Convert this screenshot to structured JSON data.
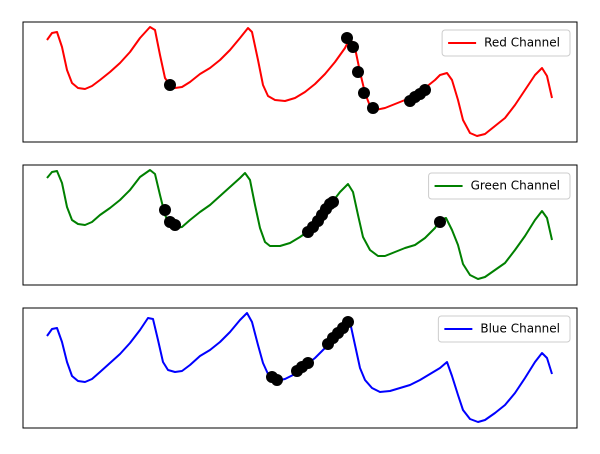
{
  "chart_data": [
    {
      "type": "line",
      "xlim": [
        -24,
        530
      ],
      "ylim": [
        0,
        120
      ],
      "legend": "upper right",
      "series": [
        {
          "name": "Red Channel",
          "color": "#ff0000",
          "x": [
            0,
            5,
            10,
            15,
            20,
            25,
            31,
            38,
            45,
            53,
            63,
            73,
            83,
            93,
            103,
            108,
            113,
            118,
            123,
            128,
            135,
            143,
            153,
            163,
            173,
            183,
            193,
            201,
            205,
            211,
            216,
            221,
            228,
            238,
            248,
            258,
            268,
            278,
            288,
            298,
            303,
            308,
            313,
            318,
            323,
            328,
            338,
            348,
            358,
            368,
            378,
            388,
            393,
            400,
            405,
            411,
            416,
            423,
            430,
            438,
            448,
            458,
            468,
            478,
            488,
            495,
            500,
            505
          ],
          "values": [
            102,
            109,
            110,
            95,
            72,
            59,
            54,
            53,
            56,
            62,
            70,
            79,
            90,
            104,
            115,
            112,
            87,
            64,
            57,
            54,
            55,
            60,
            68,
            74,
            82,
            92,
            104,
            114,
            110,
            82,
            57,
            46,
            42,
            41,
            44,
            50,
            58,
            68,
            80,
            94,
            104,
            94,
            70,
            49,
            36,
            32,
            34,
            38,
            42,
            47,
            54,
            62,
            67,
            69,
            62,
            42,
            22,
            9,
            6,
            8,
            16,
            24,
            37,
            52,
            67,
            74,
            66,
            44
          ]
        }
      ],
      "points": {
        "color": "#000000",
        "x": [
          123,
          300,
          306,
          311,
          317,
          326,
          363,
          368,
          373,
          378
        ],
        "values": [
          57,
          104,
          95,
          70,
          49,
          34,
          41,
          45,
          48,
          52
        ]
      }
    },
    {
      "type": "line",
      "xlim": [
        -24,
        530
      ],
      "ylim": [
        0,
        120
      ],
      "legend": "upper right",
      "series": [
        {
          "name": "Green Channel",
          "color": "#008000",
          "x": [
            0,
            5,
            10,
            15,
            20,
            25,
            31,
            38,
            45,
            53,
            63,
            73,
            83,
            93,
            103,
            108,
            113,
            118,
            123,
            128,
            135,
            143,
            153,
            163,
            173,
            183,
            193,
            198,
            203,
            208,
            213,
            218,
            223,
            233,
            243,
            253,
            263,
            273,
            283,
            293,
            301,
            306,
            311,
            316,
            323,
            331,
            338,
            348,
            358,
            368,
            378,
            388,
            393,
            399,
            405,
            411,
            416,
            423,
            431,
            438,
            448,
            458,
            468,
            478,
            488,
            495,
            500,
            505
          ],
          "values": [
            107,
            113,
            114,
            102,
            78,
            65,
            61,
            60,
            63,
            70,
            77,
            85,
            95,
            108,
            115,
            111,
            90,
            70,
            60,
            57,
            58,
            65,
            73,
            80,
            89,
            98,
            107,
            112,
            105,
            80,
            57,
            43,
            39,
            39,
            42,
            48,
            55,
            65,
            80,
            93,
            101,
            93,
            70,
            48,
            35,
            29,
            29,
            33,
            37,
            40,
            47,
            57,
            65,
            67,
            55,
            40,
            21,
            10,
            6,
            8,
            15,
            22,
            35,
            49,
            65,
            74,
            67,
            45
          ]
        }
      ],
      "points": {
        "color": "#000000",
        "x": [
          118,
          123,
          128,
          261,
          266,
          271,
          275,
          279,
          283,
          286,
          393
        ],
        "values": [
          75,
          63,
          60,
          53,
          58,
          64,
          70,
          76,
          81,
          83,
          63
        ]
      }
    },
    {
      "type": "line",
      "xlim": [
        -24,
        530
      ],
      "ylim": [
        0,
        120
      ],
      "legend": "upper right",
      "series": [
        {
          "name": "Blue Channel",
          "color": "#0000ff",
          "x": [
            0,
            5,
            10,
            15,
            20,
            25,
            31,
            38,
            45,
            53,
            63,
            73,
            83,
            93,
            101,
            106,
            111,
            116,
            121,
            128,
            135,
            143,
            153,
            163,
            173,
            183,
            193,
            200,
            205,
            211,
            216,
            221,
            228,
            238,
            248,
            258,
            268,
            278,
            288,
            296,
            303,
            308,
            313,
            318,
            325,
            333,
            343,
            353,
            363,
            373,
            383,
            393,
            400,
            405,
            411,
            416,
            423,
            431,
            438,
            448,
            458,
            468,
            478,
            488,
            495,
            500,
            505
          ],
          "values": [
            92,
            99,
            100,
            86,
            66,
            52,
            47,
            46,
            49,
            56,
            65,
            74,
            85,
            98,
            110,
            109,
            88,
            66,
            58,
            56,
            57,
            63,
            72,
            78,
            86,
            96,
            108,
            115,
            106,
            83,
            65,
            54,
            47,
            49,
            54,
            62,
            70,
            80,
            91,
            100,
            106,
            83,
            60,
            48,
            40,
            36,
            37,
            40,
            43,
            48,
            54,
            60,
            66,
            52,
            33,
            18,
            9,
            6,
            8,
            15,
            23,
            35,
            50,
            66,
            75,
            70,
            54
          ]
        }
      ],
      "points": {
        "color": "#000000",
        "x": [
          225,
          230,
          250,
          255,
          261,
          281,
          286,
          291,
          296,
          301
        ],
        "values": [
          51,
          48,
          57,
          61,
          65,
          84,
          90,
          95,
          100,
          106
        ]
      }
    }
  ]
}
